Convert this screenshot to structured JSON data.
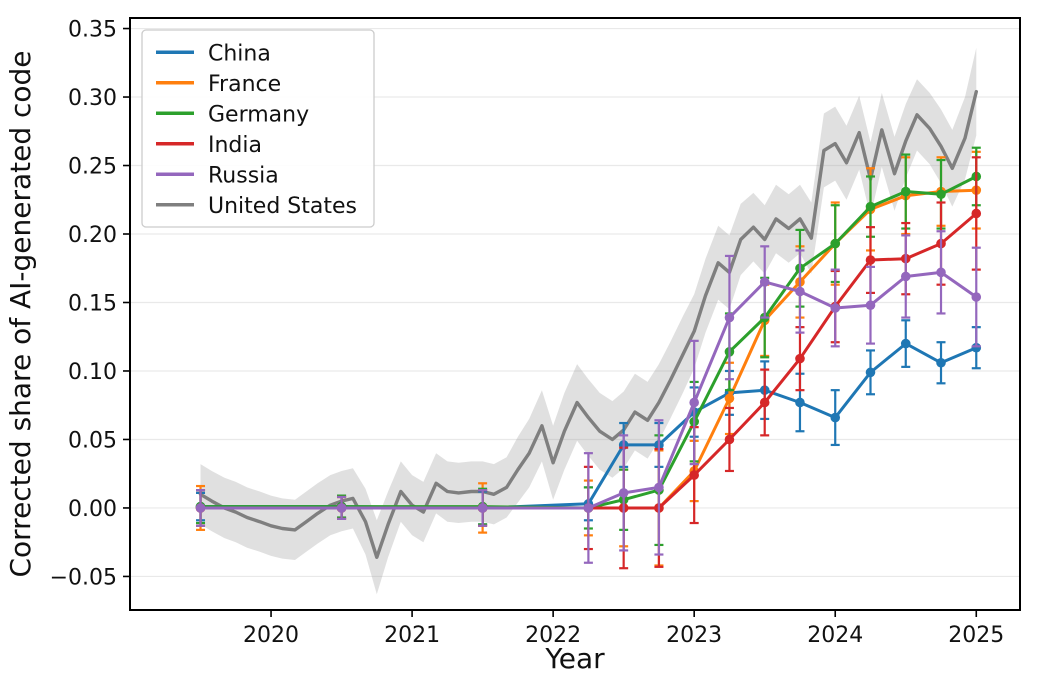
{
  "chart_data": {
    "type": "line",
    "title": "",
    "xlabel": "Year",
    "ylabel": "Corrected share of AI-generated code",
    "xlim": [
      2019.0,
      2025.31
    ],
    "ylim": [
      -0.0745,
      0.3577
    ],
    "grid": "horizontal",
    "legend_position": "upper left",
    "x_ticks": [
      2020,
      2021,
      2022,
      2023,
      2024,
      2025
    ],
    "x_tick_labels": [
      "2020",
      "2021",
      "2022",
      "2023",
      "2024",
      "2025"
    ],
    "y_ticks": [
      -0.05,
      0.0,
      0.05,
      0.1,
      0.15,
      0.2,
      0.25,
      0.3,
      0.35
    ],
    "y_tick_labels": [
      "−0.05",
      "0.00",
      "0.05",
      "0.10",
      "0.15",
      "0.20",
      "0.25",
      "0.30",
      "0.35"
    ],
    "series": [
      {
        "name": "China",
        "color": "#1f77b4",
        "style": "marker-line-errorbar",
        "points": [
          [
            2019.5,
            0.001,
            0.01
          ],
          [
            2020.5,
            0.001,
            0.008
          ],
          [
            2021.5,
            0.0,
            0.012
          ],
          [
            2022.25,
            0.003,
            0.012
          ],
          [
            2022.5,
            0.046,
            0.016
          ],
          [
            2022.75,
            0.046,
            0.016
          ],
          [
            2023.0,
            0.07,
            0.018
          ],
          [
            2023.25,
            0.084,
            0.016
          ],
          [
            2023.5,
            0.086,
            0.021
          ],
          [
            2023.75,
            0.077,
            0.021
          ],
          [
            2024.0,
            0.066,
            0.02
          ],
          [
            2024.25,
            0.099,
            0.016
          ],
          [
            2024.5,
            0.12,
            0.017
          ],
          [
            2024.75,
            0.106,
            0.015
          ],
          [
            2025.0,
            0.117,
            0.015
          ]
        ]
      },
      {
        "name": "France",
        "color": "#ff7f0e",
        "style": "marker-line-errorbar",
        "points": [
          [
            2019.5,
            0.0,
            0.016
          ],
          [
            2020.5,
            0.0,
            0.008
          ],
          [
            2021.5,
            0.0,
            0.018
          ],
          [
            2022.25,
            0.0,
            0.02
          ],
          [
            2022.5,
            0.0,
            0.028
          ],
          [
            2022.75,
            0.0,
            0.042
          ],
          [
            2023.0,
            0.027,
            0.022
          ],
          [
            2023.25,
            0.08,
            0.026
          ],
          [
            2023.5,
            0.137,
            0.026
          ],
          [
            2023.75,
            0.165,
            0.026
          ],
          [
            2024.0,
            0.193,
            0.03
          ],
          [
            2024.25,
            0.218,
            0.03
          ],
          [
            2024.5,
            0.228,
            0.028
          ],
          [
            2024.75,
            0.231,
            0.025
          ],
          [
            2025.0,
            0.232,
            0.028
          ]
        ]
      },
      {
        "name": "Germany",
        "color": "#2ca02c",
        "style": "marker-line-errorbar",
        "points": [
          [
            2019.5,
            0.001,
            0.012
          ],
          [
            2020.5,
            0.001,
            0.008
          ],
          [
            2021.5,
            0.001,
            0.013
          ],
          [
            2022.25,
            0.0,
            0.015
          ],
          [
            2022.5,
            0.006,
            0.022
          ],
          [
            2022.75,
            0.013,
            0.04
          ],
          [
            2023.0,
            0.063,
            0.029
          ],
          [
            2023.25,
            0.114,
            0.028
          ],
          [
            2023.5,
            0.139,
            0.029
          ],
          [
            2023.75,
            0.175,
            0.028
          ],
          [
            2024.0,
            0.193,
            0.028
          ],
          [
            2024.25,
            0.22,
            0.022
          ],
          [
            2024.5,
            0.231,
            0.027
          ],
          [
            2024.75,
            0.229,
            0.025
          ],
          [
            2025.0,
            0.242,
            0.021
          ]
        ]
      },
      {
        "name": "India",
        "color": "#d62728",
        "style": "marker-line-errorbar",
        "points": [
          [
            2019.5,
            0.0,
            0.013
          ],
          [
            2020.5,
            0.0,
            0.008
          ],
          [
            2021.5,
            0.0,
            0.013
          ],
          [
            2022.25,
            0.0,
            0.03
          ],
          [
            2022.5,
            0.0,
            0.044
          ],
          [
            2022.75,
            0.0,
            0.043
          ],
          [
            2023.0,
            0.024,
            0.035
          ],
          [
            2023.25,
            0.05,
            0.023
          ],
          [
            2023.5,
            0.077,
            0.024
          ],
          [
            2023.75,
            0.109,
            0.023
          ],
          [
            2024.0,
            0.147,
            0.026
          ],
          [
            2024.25,
            0.181,
            0.024
          ],
          [
            2024.5,
            0.182,
            0.026
          ],
          [
            2024.75,
            0.193,
            0.03
          ],
          [
            2025.0,
            0.215,
            0.041
          ]
        ]
      },
      {
        "name": "Russia",
        "color": "#9467bd",
        "style": "marker-line-errorbar",
        "points": [
          [
            2019.5,
            0.0,
            0.013
          ],
          [
            2020.5,
            0.0,
            0.008
          ],
          [
            2021.5,
            0.0,
            0.013
          ],
          [
            2022.25,
            0.0,
            0.04
          ],
          [
            2022.5,
            0.011,
            0.042
          ],
          [
            2022.75,
            0.015,
            0.049
          ],
          [
            2023.0,
            0.077,
            0.045
          ],
          [
            2023.25,
            0.139,
            0.045
          ],
          [
            2023.5,
            0.165,
            0.026
          ],
          [
            2023.75,
            0.158,
            0.03
          ],
          [
            2024.0,
            0.146,
            0.028
          ],
          [
            2024.25,
            0.148,
            0.028
          ],
          [
            2024.5,
            0.169,
            0.03
          ],
          [
            2024.75,
            0.172,
            0.03
          ],
          [
            2025.0,
            0.154,
            0.036
          ]
        ]
      },
      {
        "name": "United States",
        "color": "#7f7f7f",
        "style": "line-band",
        "band_color": "#9e9e9e",
        "band_opacity": 0.32,
        "points": [
          [
            2019.5,
            0.01,
            0.022
          ],
          [
            2019.58,
            0.005,
            0.022
          ],
          [
            2019.67,
            0.0,
            0.022
          ],
          [
            2019.75,
            -0.003,
            0.022
          ],
          [
            2019.83,
            -0.007,
            0.022
          ],
          [
            2019.92,
            -0.01,
            0.022
          ],
          [
            2020.0,
            -0.013,
            0.022
          ],
          [
            2020.08,
            -0.015,
            0.022
          ],
          [
            2020.17,
            -0.016,
            0.022
          ],
          [
            2020.25,
            -0.01,
            0.022
          ],
          [
            2020.33,
            -0.004,
            0.022
          ],
          [
            2020.42,
            0.002,
            0.022
          ],
          [
            2020.5,
            0.005,
            0.022
          ],
          [
            2020.58,
            0.007,
            0.022
          ],
          [
            2020.67,
            -0.01,
            0.024
          ],
          [
            2020.75,
            -0.036,
            0.027
          ],
          [
            2020.83,
            -0.012,
            0.024
          ],
          [
            2020.92,
            0.012,
            0.022
          ],
          [
            2021.0,
            0.002,
            0.022
          ],
          [
            2021.08,
            -0.003,
            0.022
          ],
          [
            2021.17,
            0.018,
            0.022
          ],
          [
            2021.25,
            0.012,
            0.022
          ],
          [
            2021.33,
            0.011,
            0.022
          ],
          [
            2021.42,
            0.012,
            0.022
          ],
          [
            2021.5,
            0.012,
            0.022
          ],
          [
            2021.58,
            0.01,
            0.022
          ],
          [
            2021.67,
            0.015,
            0.022
          ],
          [
            2021.75,
            0.028,
            0.024
          ],
          [
            2021.83,
            0.04,
            0.025
          ],
          [
            2021.92,
            0.06,
            0.026
          ],
          [
            2022.0,
            0.033,
            0.027
          ],
          [
            2022.08,
            0.056,
            0.028
          ],
          [
            2022.17,
            0.077,
            0.028
          ],
          [
            2022.25,
            0.066,
            0.028
          ],
          [
            2022.33,
            0.056,
            0.028
          ],
          [
            2022.42,
            0.05,
            0.028
          ],
          [
            2022.5,
            0.057,
            0.028
          ],
          [
            2022.58,
            0.07,
            0.028
          ],
          [
            2022.67,
            0.064,
            0.028
          ],
          [
            2022.75,
            0.077,
            0.028
          ],
          [
            2022.83,
            0.093,
            0.028
          ],
          [
            2022.92,
            0.112,
            0.028
          ],
          [
            2023.0,
            0.129,
            0.027
          ],
          [
            2023.08,
            0.155,
            0.027
          ],
          [
            2023.17,
            0.179,
            0.027
          ],
          [
            2023.25,
            0.172,
            0.027
          ],
          [
            2023.33,
            0.196,
            0.026
          ],
          [
            2023.42,
            0.205,
            0.025
          ],
          [
            2023.5,
            0.196,
            0.025
          ],
          [
            2023.58,
            0.211,
            0.025
          ],
          [
            2023.67,
            0.204,
            0.025
          ],
          [
            2023.75,
            0.211,
            0.025
          ],
          [
            2023.83,
            0.197,
            0.026
          ],
          [
            2023.92,
            0.261,
            0.027
          ],
          [
            2024.0,
            0.266,
            0.027
          ],
          [
            2024.08,
            0.252,
            0.027
          ],
          [
            2024.17,
            0.274,
            0.027
          ],
          [
            2024.25,
            0.24,
            0.027
          ],
          [
            2024.33,
            0.276,
            0.027
          ],
          [
            2024.42,
            0.244,
            0.027
          ],
          [
            2024.5,
            0.268,
            0.027
          ],
          [
            2024.58,
            0.287,
            0.026
          ],
          [
            2024.67,
            0.277,
            0.026
          ],
          [
            2024.75,
            0.264,
            0.027
          ],
          [
            2024.83,
            0.248,
            0.028
          ],
          [
            2024.92,
            0.27,
            0.03
          ],
          [
            2025.0,
            0.304,
            0.032
          ]
        ]
      }
    ],
    "legend_entries": [
      "China",
      "France",
      "Germany",
      "India",
      "Russia",
      "United States"
    ]
  },
  "colors": {
    "grid": "#e9e9e9",
    "spine": "#000000",
    "background": "#ffffff",
    "legend_border": "#cccccc",
    "legend_fill": "#ffffff"
  }
}
